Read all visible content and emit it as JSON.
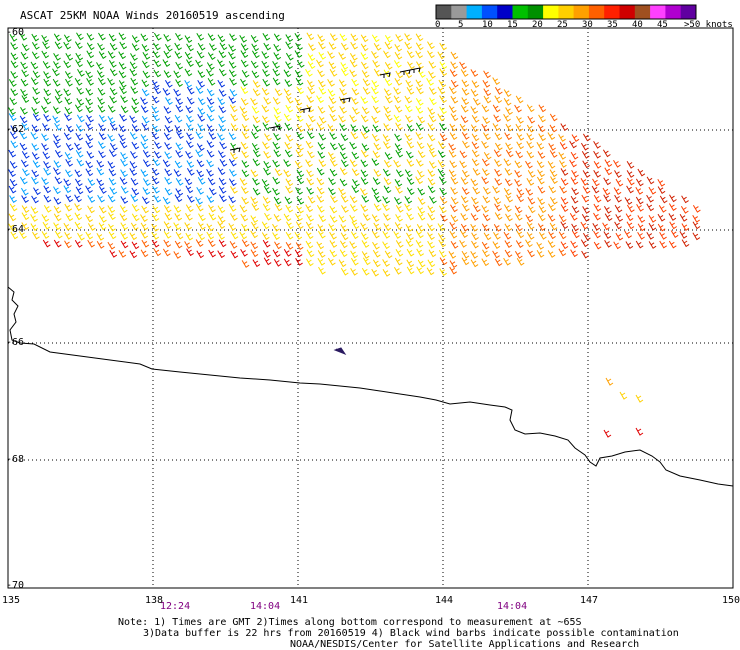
{
  "title": "ASCAT 25KM NOAA Winds 20160519 ascending",
  "legend": {
    "colors": [
      "#555555",
      "#9a9a9a",
      "#00b0ff",
      "#0050ff",
      "#0000c8",
      "#00c000",
      "#009000",
      "#ffff00",
      "#ffd000",
      "#ffa000",
      "#ff6000",
      "#ff2000",
      "#d00000",
      "#a05020",
      "#ff40ff",
      "#b000d0",
      "#6000a0"
    ],
    "labels": [
      "0",
      "5",
      "10",
      "15",
      "20",
      "25",
      "30",
      "35",
      "40",
      "45",
      ">50 knots"
    ]
  },
  "latitudes": [
    "-60",
    "-62",
    "-64",
    "-66",
    "-68",
    "-70"
  ],
  "longitudes": [
    "135",
    "138",
    "141",
    "144",
    "147",
    "150"
  ],
  "times": [
    "12:24",
    "14:04",
    "14:04"
  ],
  "notes": [
    "Note: 1) Times are GMT 2)Times along bottom correspond to measurement at ~65S",
    "3)Data buffer is 22 hrs from 20160519 4) Black wind barbs indicate possible contamination",
    "NOAA/NESDIS/Center for Satellite Applications and Research"
  ]
}
